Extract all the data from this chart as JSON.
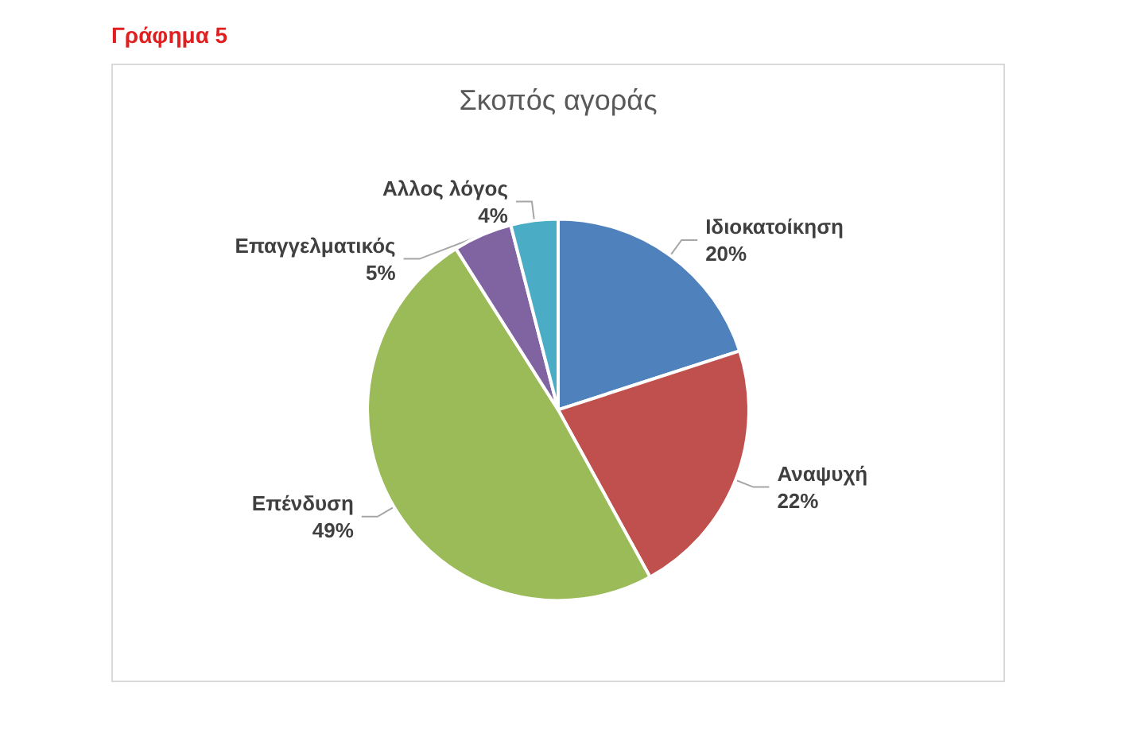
{
  "chart_data": {
    "type": "pie",
    "title": "Σκοπός αγοράς",
    "categories": [
      "Ιδιοκατοίκηση",
      "Αναψυχή",
      "Επένδυση",
      "Επαγγελματικός",
      "Αλλος λόγος"
    ],
    "values": [
      20,
      22,
      49,
      5,
      4
    ],
    "colors": [
      "#4f81bd",
      "#c0504d",
      "#9bbb59",
      "#8064a2",
      "#4bacc6"
    ],
    "value_labels": [
      "20%",
      "22%",
      "49%",
      "5%",
      "4%"
    ],
    "annotations": [
      "Γράφημα 5"
    ]
  }
}
